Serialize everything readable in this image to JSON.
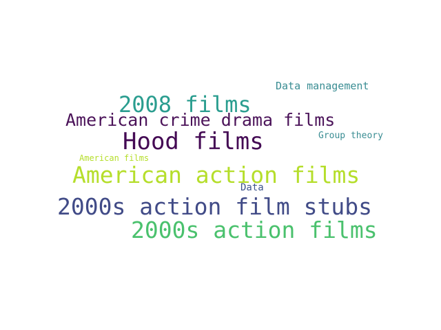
{
  "word_cloud": {
    "words": [
      {
        "text": "Data management",
        "color": "#3a8d93"
      },
      {
        "text": "2008 films",
        "color": "#2a9d8f"
      },
      {
        "text": "American crime drama films",
        "color": "#4b1359"
      },
      {
        "text": "Group theory",
        "color": "#3a8d93"
      },
      {
        "text": "Hood films",
        "color": "#440a54"
      },
      {
        "text": "American films",
        "color": "#b5de2b"
      },
      {
        "text": "American action films",
        "color": "#b5de2b"
      },
      {
        "text": "Data",
        "color": "#3b528b"
      },
      {
        "text": "2000s action film stubs",
        "color": "#414b87"
      },
      {
        "text": "2000s action films",
        "color": "#4ac16d"
      }
    ]
  }
}
